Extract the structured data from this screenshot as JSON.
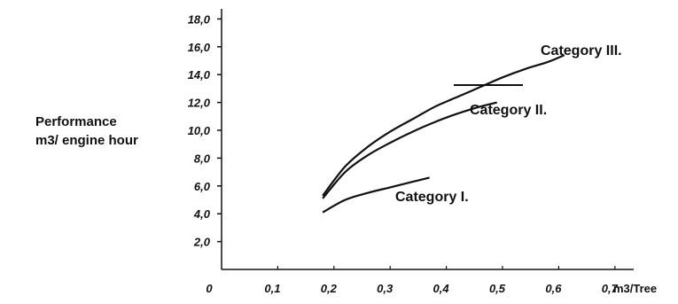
{
  "chart_data": {
    "type": "line",
    "title": "",
    "ylabel_lines": [
      "Performance",
      "m3/ engine hour"
    ],
    "xlabel": "m3/Tree",
    "ylim": [
      0,
      18
    ],
    "xlim": [
      0,
      0.8
    ],
    "y_ticks": [
      "2,0",
      "4,0",
      "6,0",
      "8,0",
      "10,0",
      "12,0",
      "14,0",
      "16,0",
      "18,0"
    ],
    "y_tick_values": [
      2,
      4,
      6,
      8,
      10,
      12,
      14,
      16,
      18
    ],
    "x_ticks": [
      "0",
      "0,1",
      "0,2",
      "0,3",
      "0,4",
      "0,5",
      "0,6",
      "0,7"
    ],
    "x_tick_values": [
      0,
      0.1,
      0.2,
      0.3,
      0.4,
      0.5,
      0.6,
      0.7
    ],
    "series": [
      {
        "name": "Category I.",
        "x": [
          0.18,
          0.22,
          0.26,
          0.3,
          0.34,
          0.37
        ],
        "y": [
          4.1,
          5.0,
          5.5,
          5.9,
          6.3,
          6.6
        ]
      },
      {
        "name": "Category II.",
        "x": [
          0.18,
          0.22,
          0.26,
          0.3,
          0.34,
          0.38,
          0.42,
          0.46,
          0.49
        ],
        "y": [
          5.1,
          7.0,
          8.2,
          9.1,
          9.9,
          10.6,
          11.2,
          11.7,
          12.0
        ]
      },
      {
        "name": "Category III.",
        "x": [
          0.18,
          0.22,
          0.26,
          0.3,
          0.34,
          0.38,
          0.42,
          0.46,
          0.5,
          0.54,
          0.58,
          0.61
        ],
        "y": [
          5.3,
          7.4,
          8.8,
          9.9,
          10.8,
          11.7,
          12.4,
          13.1,
          13.8,
          14.4,
          14.9,
          15.4
        ]
      }
    ]
  }
}
